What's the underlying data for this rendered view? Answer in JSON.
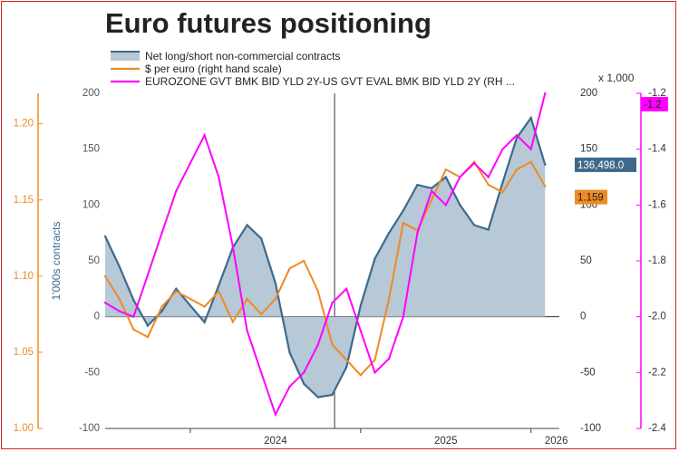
{
  "chart_data": {
    "type": "area",
    "title": "Euro futures positioning",
    "legend": [
      {
        "key": "net",
        "label": "Net long/short non-commercial contracts",
        "color": "#3d6a8c",
        "fill": "#b7c8d6"
      },
      {
        "key": "eurusd",
        "label": "$ per euro (right hand scale)",
        "color": "#f08a24"
      },
      {
        "key": "spread",
        "label": "EUROZONE GVT BMK BID YLD 2Y-US GVT EVAL BMK BID YLD 2Y (RH ...",
        "color": "#ff00ff"
      }
    ],
    "legend_placement": "top-left",
    "xlabel": "",
    "x_ticks": [
      "2024",
      "2025",
      "2026"
    ],
    "x_range": [
      "2023-07",
      "2026-02"
    ],
    "axes": {
      "left_net": {
        "label": "1'000s contracts",
        "ylim": [
          -100,
          200
        ],
        "ticks": [
          "-100",
          "-50",
          "0",
          "50",
          "100",
          "150",
          "200"
        ],
        "color": "#3d6a8c"
      },
      "far_left_eurusd": {
        "label": "",
        "ylim": [
          1.0,
          1.22
        ],
        "ticks": [
          "1.00",
          "1.05",
          "1.10",
          "1.15",
          "1.20"
        ],
        "color": "#f08a24"
      },
      "right_net": {
        "label": "x 1,000",
        "ylim": [
          -100,
          200
        ],
        "ticks": [
          "-100",
          "-50",
          "0",
          "50",
          "100",
          "150",
          "200"
        ],
        "color": "#333333"
      },
      "far_right_spread": {
        "label": "",
        "ylim": [
          -2.4,
          -1.2
        ],
        "ticks": [
          "-2.4",
          "-2.2",
          "-2.0",
          "-1.8",
          "-1.6",
          "-1.4",
          "-1.2"
        ],
        "color": "#ff00ff"
      }
    },
    "markers": {
      "net_last": "136,498.0",
      "eurusd_last": "1.159",
      "spread_last": "-1.2"
    },
    "vertical_line_date": "2024-11-06",
    "series": [
      {
        "name": "Net long/short non-commercial contracts",
        "axis": "left_net",
        "x": [
          "2023-07",
          "2023-08",
          "2023-09",
          "2023-10",
          "2023-11",
          "2023-12",
          "2024-01",
          "2024-02",
          "2024-03",
          "2024-04",
          "2024-05",
          "2024-06",
          "2024-07",
          "2024-08",
          "2024-09",
          "2024-10",
          "2024-11",
          "2024-12",
          "2025-01",
          "2025-02",
          "2025-03",
          "2025-04",
          "2025-05",
          "2025-06",
          "2025-07",
          "2025-08",
          "2025-09",
          "2025-10",
          "2025-11",
          "2025-12",
          "2026-01",
          "2026-02"
        ],
        "values": [
          72,
          45,
          15,
          -8,
          5,
          25,
          10,
          -5,
          28,
          62,
          82,
          70,
          30,
          -32,
          -60,
          -72,
          -70,
          -45,
          10,
          52,
          75,
          95,
          118,
          115,
          125,
          100,
          82,
          78,
          120,
          160,
          178,
          136
        ]
      },
      {
        "name": "$ per euro (right hand scale)",
        "axis": "far_left_eurusd",
        "x": [
          "2023-07",
          "2023-08",
          "2023-09",
          "2023-10",
          "2023-11",
          "2023-12",
          "2024-01",
          "2024-02",
          "2024-03",
          "2024-04",
          "2024-05",
          "2024-06",
          "2024-07",
          "2024-08",
          "2024-09",
          "2024-10",
          "2024-11",
          "2024-12",
          "2025-01",
          "2025-02",
          "2025-03",
          "2025-04",
          "2025-05",
          "2025-06",
          "2025-07",
          "2025-08",
          "2025-09",
          "2025-10",
          "2025-11",
          "2025-12",
          "2026-01",
          "2026-02"
        ],
        "values": [
          1.1,
          1.085,
          1.065,
          1.06,
          1.08,
          1.09,
          1.085,
          1.08,
          1.09,
          1.07,
          1.085,
          1.075,
          1.085,
          1.105,
          1.11,
          1.09,
          1.055,
          1.045,
          1.035,
          1.045,
          1.085,
          1.135,
          1.13,
          1.15,
          1.17,
          1.165,
          1.175,
          1.16,
          1.155,
          1.17,
          1.175,
          1.159
        ]
      },
      {
        "name": "EUROZONE GVT BMK BID YLD 2Y-US GVT EVAL BMK BID YLD 2Y (RH ...",
        "axis": "far_right_spread",
        "x": [
          "2023-07",
          "2023-08",
          "2023-09",
          "2023-10",
          "2023-11",
          "2023-12",
          "2024-01",
          "2024-02",
          "2024-03",
          "2024-04",
          "2024-05",
          "2024-06",
          "2024-07",
          "2024-08",
          "2024-09",
          "2024-10",
          "2024-11",
          "2024-12",
          "2025-01",
          "2025-02",
          "2025-03",
          "2025-04",
          "2025-05",
          "2025-06",
          "2025-07",
          "2025-08",
          "2025-09",
          "2025-10",
          "2025-11",
          "2025-12",
          "2026-01",
          "2026-02"
        ],
        "values": [
          -1.95,
          -1.98,
          -2.0,
          -1.85,
          -1.7,
          -1.55,
          -1.45,
          -1.35,
          -1.5,
          -1.75,
          -2.05,
          -2.2,
          -2.35,
          -2.25,
          -2.2,
          -2.1,
          -1.95,
          -1.9,
          -2.05,
          -2.2,
          -2.15,
          -2.0,
          -1.7,
          -1.55,
          -1.6,
          -1.5,
          -1.45,
          -1.5,
          -1.4,
          -1.35,
          -1.4,
          -1.2
        ]
      }
    ]
  }
}
